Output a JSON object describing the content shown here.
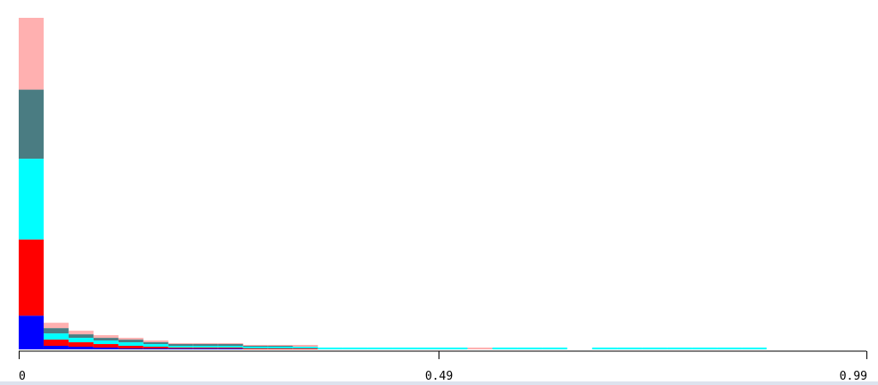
{
  "chart_data": {
    "type": "bar",
    "stacked": true,
    "bins": 34,
    "xlim": [
      0,
      0.99
    ],
    "ylim": [
      0,
      375
    ],
    "grid": false,
    "legend": "none",
    "x_tick_labels": [
      {
        "value": 0,
        "label": "0"
      },
      {
        "value": 0.49,
        "label": "0.49"
      },
      {
        "value": 0.99,
        "label": "0.99"
      }
    ],
    "series": [
      {
        "color": "#0000ff",
        "values": [
          38,
          4,
          3,
          2,
          1,
          1,
          1,
          1,
          1,
          0,
          0,
          0,
          0,
          0,
          0,
          0,
          0,
          0,
          0,
          0,
          0,
          0,
          0,
          0,
          0,
          0,
          0,
          0,
          0,
          0,
          0,
          0,
          0,
          0
        ]
      },
      {
        "color": "#ff0000",
        "values": [
          86,
          7,
          5,
          4,
          3,
          2,
          1,
          1,
          1,
          1,
          1,
          1,
          0,
          0,
          0,
          0,
          0,
          0,
          0,
          0,
          0,
          0,
          0,
          0,
          0,
          0,
          0,
          0,
          0,
          0,
          0,
          0,
          0,
          0
        ]
      },
      {
        "color": "#00ffff",
        "values": [
          91,
          7,
          5,
          4,
          4,
          3,
          2,
          2,
          2,
          2,
          2,
          2,
          2,
          2,
          2,
          2,
          2,
          2,
          0,
          2,
          2,
          2,
          0,
          2,
          2,
          2,
          2,
          2,
          2,
          2,
          0,
          0,
          0,
          0
        ]
      },
      {
        "color": "#4a7c82",
        "values": [
          78,
          6,
          4,
          3,
          3,
          2,
          2,
          2,
          2,
          1,
          1,
          0,
          0,
          0,
          0,
          0,
          0,
          0,
          0,
          0,
          0,
          0,
          0,
          0,
          0,
          0,
          0,
          0,
          0,
          0,
          0,
          0,
          0,
          0
        ]
      },
      {
        "color": "#ffb0b0",
        "values": [
          81,
          6,
          4,
          3,
          2,
          2,
          1,
          1,
          1,
          1,
          1,
          2,
          0,
          0,
          0,
          0,
          0,
          0,
          2,
          0,
          0,
          0,
          0,
          0,
          0,
          0,
          0,
          0,
          0,
          0,
          0,
          0,
          0,
          0
        ]
      }
    ]
  }
}
